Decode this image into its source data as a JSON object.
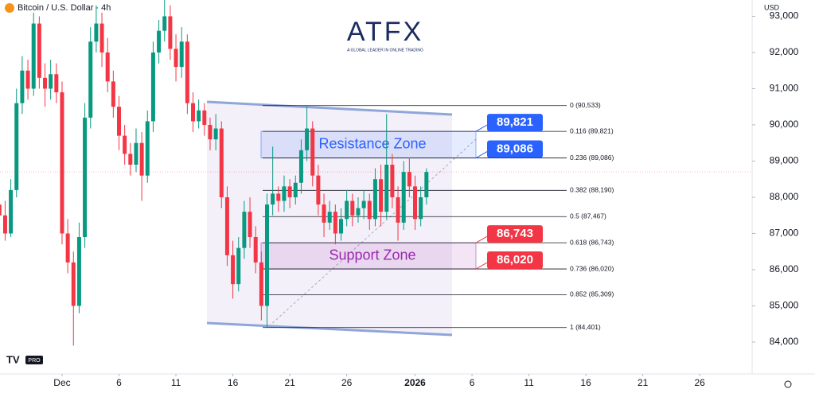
{
  "chart_data": {
    "type": "candlestick",
    "title": "Bitcoin / U.S. Dollar · 4h",
    "currency": "USD",
    "brand": "ATFX",
    "brand_tagline": "A GLOBAL LEADER IN ONLINE TRADING",
    "badge": "PRO",
    "up_color": "#089981",
    "down_color": "#f23645",
    "xlim": [
      -5.45,
      60.6
    ],
    "xticks": [
      {
        "value": 0,
        "label": "Dec"
      },
      {
        "value": 5,
        "label": "6"
      },
      {
        "value": 10,
        "label": "11"
      },
      {
        "value": 15,
        "label": "16"
      },
      {
        "value": 20,
        "label": "21"
      },
      {
        "value": 25,
        "label": "26"
      },
      {
        "value": 31,
        "label": "2026"
      },
      {
        "value": 36,
        "label": "6"
      },
      {
        "value": 41,
        "label": "11"
      },
      {
        "value": 46,
        "label": "16"
      },
      {
        "value": 51,
        "label": "21"
      },
      {
        "value": 56,
        "label": "26"
      }
    ],
    "ylim": [
      83120,
      93450
    ],
    "yticks": [
      {
        "value": 84000,
        "label": "84,000"
      },
      {
        "value": 85000,
        "label": "85,000"
      },
      {
        "value": 86000,
        "label": "86,000"
      },
      {
        "value": 87000,
        "label": "87,000"
      },
      {
        "value": 88000,
        "label": "88,000"
      },
      {
        "value": 89000,
        "label": "89,000"
      },
      {
        "value": 90000,
        "label": "90,000"
      },
      {
        "value": 91000,
        "label": "91,000"
      },
      {
        "value": 92000,
        "label": "92,000"
      },
      {
        "value": 93000,
        "label": "93,000"
      }
    ],
    "x": [
      -5.5,
      -5,
      -4.5,
      -4,
      -3.5,
      -3,
      -2.5,
      -2,
      -1.5,
      -1,
      -0.5,
      0,
      0.5,
      1,
      1.5,
      2,
      2.5,
      3,
      3.5,
      4,
      4.5,
      5,
      5.5,
      6,
      6.5,
      7,
      7.5,
      8,
      8.5,
      9,
      9.5,
      10,
      10.5,
      11,
      11.5,
      12,
      12.5,
      13,
      13.5,
      14,
      14.5,
      15,
      15.5,
      16,
      16.5,
      17,
      17.5,
      18,
      18.5,
      19,
      19.5,
      20,
      20.5,
      21,
      21.5,
      22,
      22.5,
      23,
      23.5,
      24,
      24.5,
      25,
      25.5,
      26,
      26.5,
      27,
      27.5,
      28,
      28.5,
      29,
      29.5,
      30,
      30.5,
      31,
      31.5,
      32
    ],
    "open": [
      87800,
      87500,
      87000,
      88200,
      90600,
      91500,
      91000,
      92800,
      91300,
      91000,
      91400,
      90900,
      87000,
      86200,
      85000,
      86900,
      90200,
      92300,
      92800,
      92000,
      91200,
      90500,
      89700,
      89200,
      88900,
      89500,
      88600,
      90100,
      92000,
      92600,
      93000,
      92100,
      91600,
      92300,
      90600,
      90100,
      90400,
      90000,
      89600,
      89900,
      88000,
      86400,
      85600,
      86600,
      87600,
      86900,
      86200,
      85000,
      87800,
      88100,
      87900,
      88300,
      88000,
      88400,
      89300,
      89900,
      88600,
      87800,
      87300,
      87600,
      87000,
      87400,
      87900,
      87500,
      87700,
      87900,
      87400,
      88500,
      87600,
      88900,
      88000,
      87300,
      88700,
      88300,
      87400,
      88000
    ],
    "high": [
      88100,
      87900,
      88500,
      91000,
      91900,
      91800,
      93100,
      93000,
      91700,
      91800,
      91700,
      91200,
      87400,
      86500,
      87300,
      90600,
      92700,
      93300,
      93100,
      92400,
      91500,
      90800,
      90000,
      89500,
      89900,
      89800,
      90400,
      92300,
      92900,
      93500,
      93300,
      92500,
      92700,
      92500,
      90900,
      90700,
      90600,
      90200,
      90300,
      90100,
      88300,
      86800,
      86900,
      87900,
      88000,
      87200,
      86500,
      88100,
      89400,
      88300,
      88600,
      88500,
      88600,
      89600,
      90500,
      90100,
      88900,
      88100,
      87900,
      87800,
      87700,
      88200,
      88100,
      88000,
      88200,
      88100,
      88800,
      88900,
      90300,
      89200,
      88300,
      89000,
      89100,
      88600,
      88300,
      88800
    ],
    "low": [
      87100,
      86800,
      86900,
      88000,
      90300,
      90700,
      90800,
      91000,
      90500,
      90700,
      90600,
      86700,
      85900,
      83900,
      84800,
      86600,
      89900,
      92000,
      91600,
      90900,
      90200,
      89300,
      88900,
      88600,
      88700,
      87900,
      88400,
      89800,
      91700,
      92300,
      91800,
      91200,
      91300,
      90300,
      89800,
      89900,
      89700,
      89300,
      89300,
      87700,
      86100,
      85200,
      85400,
      86300,
      86600,
      85900,
      84600,
      84400,
      87500,
      87600,
      87600,
      87700,
      87800,
      88100,
      89000,
      88300,
      87500,
      86900,
      87100,
      86700,
      86800,
      87200,
      87200,
      87300,
      87400,
      87100,
      87200,
      87200,
      87400,
      87700,
      86800,
      87100,
      88000,
      87100,
      87200,
      87800
    ],
    "close": [
      87500,
      87000,
      88200,
      90600,
      91500,
      91000,
      92800,
      91300,
      91000,
      91400,
      90900,
      87000,
      86200,
      85000,
      86900,
      90200,
      92300,
      92800,
      92000,
      91200,
      90500,
      89700,
      89200,
      88900,
      89500,
      88600,
      90100,
      92000,
      92600,
      93000,
      92100,
      91600,
      92300,
      90600,
      90100,
      90400,
      90000,
      89600,
      89900,
      88000,
      86400,
      85600,
      86600,
      87600,
      86900,
      86200,
      85000,
      87800,
      88100,
      87900,
      88300,
      88000,
      88400,
      89300,
      89900,
      88600,
      87800,
      87300,
      87600,
      87000,
      87400,
      87900,
      87500,
      87700,
      87900,
      87400,
      88500,
      87600,
      88900,
      88000,
      87300,
      88700,
      88300,
      87400,
      88000,
      88700
    ],
    "fib_levels": [
      {
        "value": 90533,
        "label": "0 (90,533)"
      },
      {
        "value": 89821,
        "label": "0.116 (89,821)"
      },
      {
        "value": 89086,
        "label": "0.236 (89,086)"
      },
      {
        "value": 88190,
        "label": "0.382 (88,190)"
      },
      {
        "value": 87467,
        "label": "0.5 (87,467)"
      },
      {
        "value": 86743,
        "label": "0.618 (86,743)"
      },
      {
        "value": 86020,
        "label": "0.736 (86,020)"
      },
      {
        "value": 85309,
        "label": "0.852 (85,309)"
      },
      {
        "value": 84401,
        "label": "1 (84,401)"
      }
    ],
    "zones": [
      {
        "label": "Resistance Zone",
        "low": 89086,
        "high": 89821,
        "color": "#2962ff"
      },
      {
        "label": "Support Zone",
        "low": 86020,
        "high": 86743,
        "color": "#9c27b0"
      }
    ],
    "price_tags": [
      {
        "value": 89821,
        "label": "89,821",
        "color": "#2962ff"
      },
      {
        "value": 89086,
        "label": "89,086",
        "color": "#2962ff"
      },
      {
        "value": 86743,
        "label": "86,743",
        "color": "#f23645"
      },
      {
        "value": 86020,
        "label": "86,020",
        "color": "#f23645"
      }
    ]
  }
}
